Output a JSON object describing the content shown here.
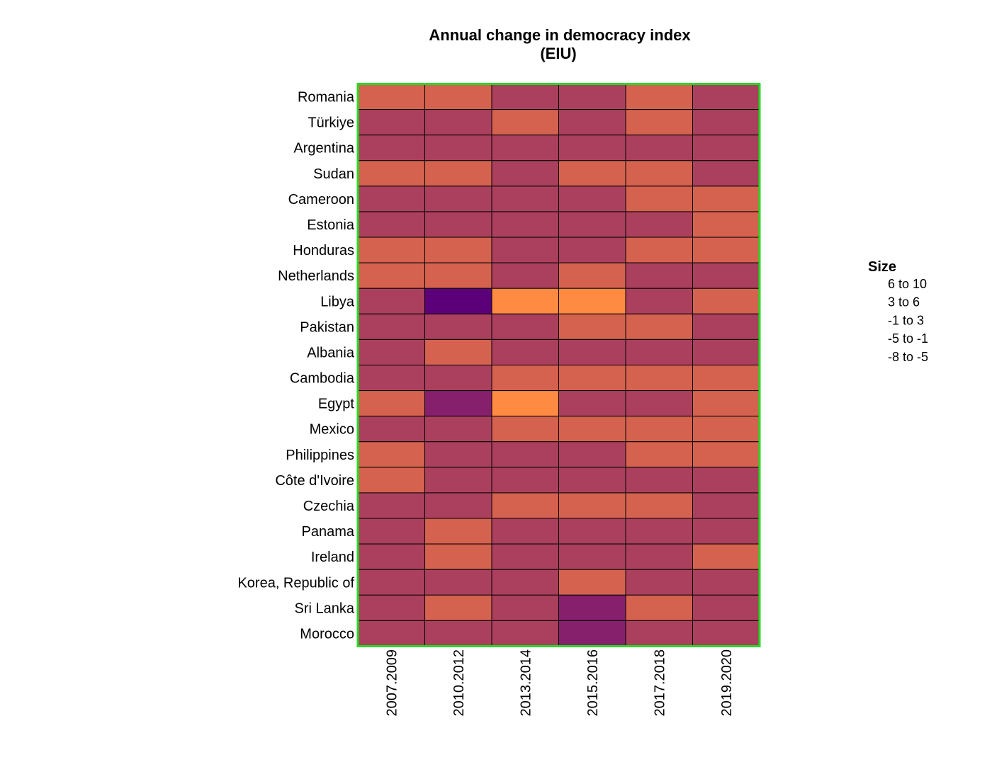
{
  "chart_data": {
    "type": "heatmap",
    "title": "Annual change in democracy index",
    "subtitle": "(EIU)",
    "rows": [
      "Romania",
      "Türkiye",
      "Argentina",
      "Sudan",
      "Cameroon",
      "Estonia",
      "Honduras",
      "Netherlands",
      "Libya",
      "Pakistan",
      "Albania",
      "Cambodia",
      "Egypt",
      "Mexico",
      "Philippines",
      "Côte d'Ivoire",
      "Czechia",
      "Panama",
      "Ireland",
      "Korea, Republic of",
      "Sri Lanka",
      "Morocco"
    ],
    "columns": [
      "2007.2009",
      "2010.2012",
      "2013.2014",
      "2015.2016",
      "2017.2018",
      "2019.2020"
    ],
    "bins": [
      {
        "label": "6  to  10",
        "color": "#FF8A42"
      },
      {
        "label": "3  to  6",
        "color": "#D4624F"
      },
      {
        "label": "-1  to  3",
        "color": "#AB405E"
      },
      {
        "label": "-5  to  -1",
        "color": "#861F6C"
      },
      {
        "label": "-8  to  -5",
        "color": "#5C007A"
      }
    ],
    "cell_bins": [
      [
        1,
        1,
        2,
        2,
        1,
        2
      ],
      [
        2,
        2,
        1,
        2,
        1,
        2
      ],
      [
        2,
        2,
        2,
        2,
        2,
        2
      ],
      [
        1,
        1,
        2,
        1,
        1,
        2
      ],
      [
        2,
        2,
        2,
        2,
        1,
        1
      ],
      [
        2,
        2,
        2,
        2,
        2,
        1
      ],
      [
        1,
        1,
        2,
        2,
        1,
        1
      ],
      [
        1,
        1,
        2,
        1,
        2,
        2
      ],
      [
        2,
        4,
        0,
        0,
        2,
        1
      ],
      [
        2,
        2,
        2,
        1,
        1,
        2
      ],
      [
        2,
        1,
        2,
        2,
        2,
        2
      ],
      [
        2,
        2,
        1,
        1,
        1,
        1
      ],
      [
        1,
        3,
        0,
        2,
        2,
        1
      ],
      [
        2,
        2,
        1,
        1,
        1,
        1
      ],
      [
        1,
        2,
        2,
        2,
        1,
        1
      ],
      [
        1,
        2,
        2,
        2,
        2,
        2
      ],
      [
        2,
        2,
        1,
        1,
        1,
        2
      ],
      [
        2,
        1,
        2,
        2,
        2,
        2
      ],
      [
        2,
        1,
        2,
        2,
        2,
        1
      ],
      [
        2,
        2,
        2,
        1,
        2,
        2
      ],
      [
        2,
        1,
        2,
        3,
        1,
        2
      ],
      [
        2,
        2,
        2,
        3,
        2,
        2
      ]
    ],
    "legend_title": "Size",
    "legend_position": "right",
    "frame_color": "#22DD22",
    "grid": true
  }
}
